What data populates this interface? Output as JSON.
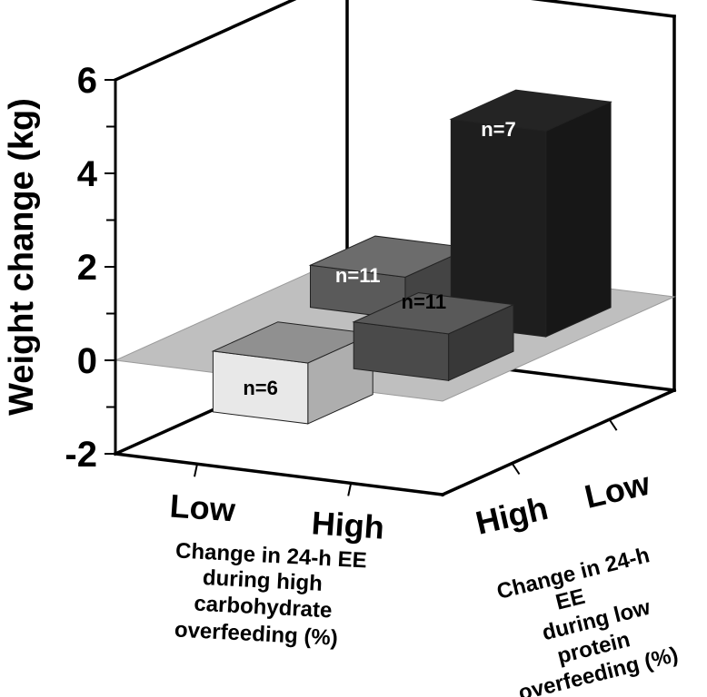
{
  "chart_data": {
    "type": "bar",
    "subtype": "3d-bar",
    "ylabel": "Weight change (kg)",
    "ylim": [
      -2,
      6
    ],
    "yticks": [
      -2,
      0,
      2,
      4,
      6
    ],
    "x_axis": {
      "categories": [
        "Low",
        "High"
      ],
      "title_lines": [
        "Change in 24-h EE",
        "during high",
        "carbohydrate",
        "overfeeding (%)"
      ]
    },
    "z_axis": {
      "categories": [
        "High",
        "Low"
      ],
      "title_lines": [
        "Change in 24-h",
        "EE",
        "during low",
        "protein",
        "overfeeding (%)"
      ]
    },
    "bars": [
      {
        "carbohydrate": "Low",
        "protein": "High",
        "value": -1.3,
        "label": "n=6",
        "color": "#e8e8e8"
      },
      {
        "carbohydrate": "High",
        "protein": "High",
        "value": 1.0,
        "label": "n=11",
        "color": "#4a4a4a"
      },
      {
        "carbohydrate": "Low",
        "protein": "Low",
        "value": 0.9,
        "label": "n=11",
        "color": "#5a5a5a"
      },
      {
        "carbohydrate": "High",
        "protein": "Low",
        "value": 4.4,
        "label": "n=7",
        "color": "#1e1e1e"
      }
    ]
  }
}
